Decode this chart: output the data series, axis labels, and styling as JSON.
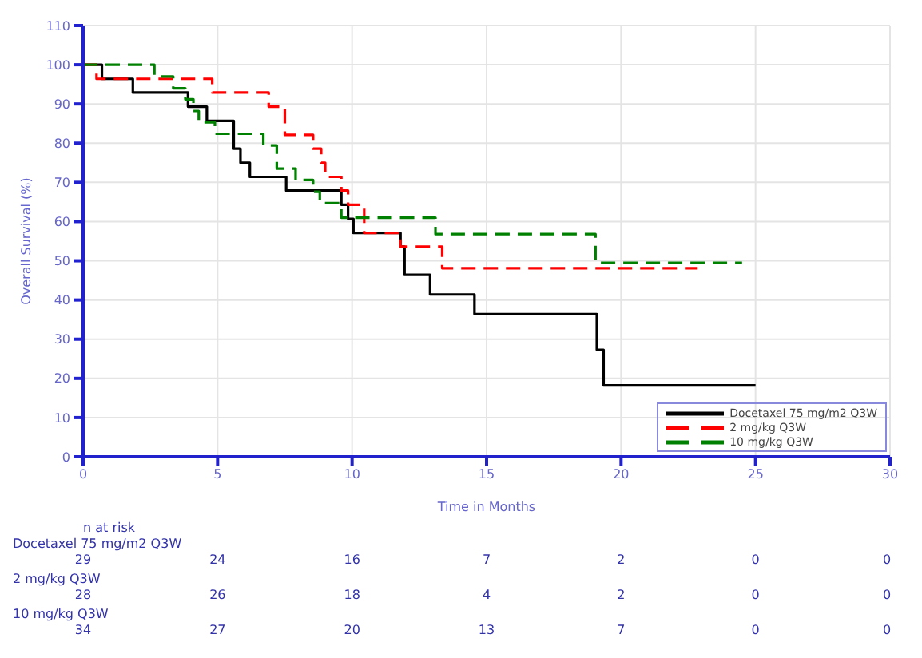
{
  "chart_data": {
    "type": "step",
    "xlabel": "Time in Months",
    "ylabel": "Overall Survival (%)",
    "xlim": [
      0,
      30
    ],
    "xticks": [
      0,
      5,
      10,
      15,
      20,
      25,
      30
    ],
    "ylim": [
      0,
      110
    ],
    "yticks": [
      0,
      10,
      20,
      30,
      40,
      50,
      60,
      70,
      80,
      90,
      100,
      110
    ],
    "grid": true,
    "legend": "bottom right",
    "marker": "none",
    "series": [
      {
        "name": "Docetaxel 75 mg/m2 Q3W",
        "color": "#000000",
        "line_style": "solid",
        "x": [
          0,
          0.7,
          1.85,
          3.9,
          4.6,
          5.6,
          5.85,
          6.2,
          7.55,
          9.6,
          9.85,
          10.05,
          11.8,
          11.95,
          12.9,
          14.55,
          19.1,
          19.35,
          25
        ],
        "values": [
          100,
          96.4,
          92.9,
          89.3,
          85.7,
          78.6,
          75,
          71.4,
          67.9,
          64.3,
          60.7,
          57.1,
          53.6,
          46.4,
          41.4,
          36.4,
          27.3,
          18.2,
          18.2
        ]
      },
      {
        "name": "2 mg/kg Q3W",
        "color": "#ff0000",
        "line_style": "dashed",
        "x": [
          0,
          0.5,
          4.8,
          6.9,
          7.5,
          8.55,
          8.85,
          9.0,
          9.6,
          9.85,
          10.45,
          11.8,
          13.35,
          22.85
        ],
        "values": [
          100,
          96.4,
          92.9,
          89.3,
          82.1,
          78.6,
          75,
          71.4,
          67.9,
          64.3,
          57.1,
          53.6,
          48.1,
          48.1
        ]
      },
      {
        "name": "10 mg/kg Q3W",
        "color": "#008000",
        "line_style": "dashed",
        "x": [
          0,
          2.65,
          3.35,
          3.8,
          4.1,
          4.3,
          4.9,
          6.7,
          7.2,
          7.9,
          8.55,
          8.8,
          9.6,
          13.1,
          19.05,
          24.5
        ],
        "values": [
          100,
          97,
          94,
          91.2,
          88.2,
          85.3,
          82.4,
          79.4,
          73.5,
          70.6,
          67.6,
          64.7,
          61,
          56.8,
          49.5,
          49.5
        ]
      }
    ],
    "annotations": [
      "n at risk",
      "Docetaxel 75 mg/m2 Q3W",
      "29",
      "24",
      "16",
      "7",
      "2",
      "0",
      "0",
      "2 mg/kg Q3W",
      "28",
      "26",
      "18",
      "4",
      "2",
      "0",
      "0",
      "10 mg/kg Q3W",
      "34",
      "27",
      "20",
      "13",
      "7",
      "0",
      "0"
    ]
  }
}
